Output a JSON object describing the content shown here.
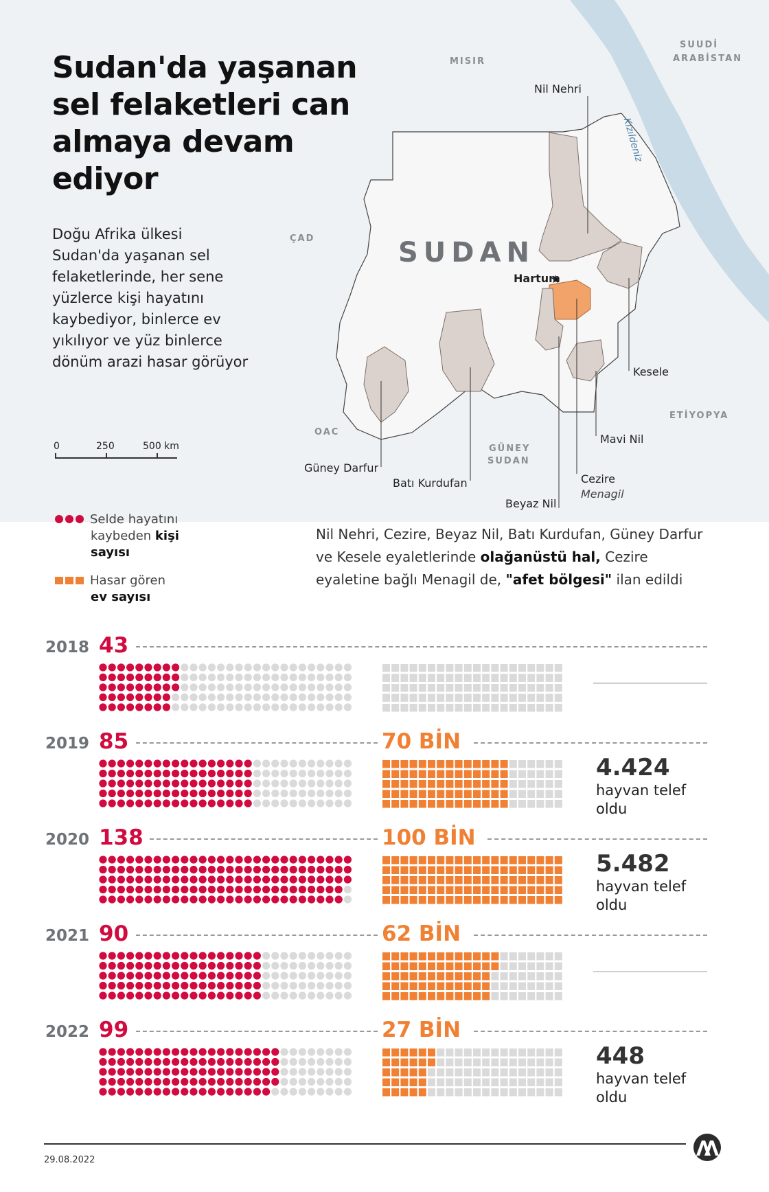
{
  "header": {
    "title": "Sudan'da yaşanan sel felaketleri can almaya devam ediyor",
    "intro": "Doğu Afrika ülkesi Sudan'da yaşanan sel felaketlerinde, her sene yüzlerce kişi hayatını kaybediyor, binlerce ev yıkılıyor ve yüz binlerce dönüm arazi hasar görüyor"
  },
  "scale_bar": {
    "labels": [
      "0",
      "250",
      "500 km"
    ]
  },
  "map": {
    "country_label": "SUDAN",
    "neighbors": {
      "misir": "MISIR",
      "suudi_line1": "SUUDİ",
      "suudi_line2": "ARABİSTAN",
      "cad": "ÇAD",
      "oac": "OAC",
      "etiyopya": "ETİYOPYA",
      "guney_line1": "GÜNEY",
      "guney_line2": "SUDAN"
    },
    "sea": "Kızıldeniz",
    "capital": "Hartum",
    "capital_marker": "★",
    "callouts": {
      "nil_nehri": "Nil Nehri",
      "kesele": "Kesele",
      "mavi_nil": "Mavi Nil",
      "cezire": "Cezire",
      "menagil": "Menagil",
      "beyaz_nil": "Beyaz Nil",
      "bati_kurdufan": "Batı Kurdufan",
      "guney_darfur": "Güney Darfur"
    },
    "colors": {
      "land": "#eef2f4",
      "sea": "#c8dbe6",
      "sudan": "#f7f7f7",
      "affected": "#dcd2cd",
      "menagil": "#f2a36a"
    }
  },
  "legend": {
    "deaths_line1": "Selde hayatını",
    "deaths_line2_pre": "kaybeden ",
    "deaths_line2_bold": "kişi",
    "deaths_line3": "sayısı",
    "houses_line1": "Hasar gören",
    "houses_line2": "ev sayısı"
  },
  "note": {
    "part1": "Nil Nehri, Cezire, Beyaz Nil, Batı Kurdufan, Güney Darfur ve Kesele eyaletlerinde ",
    "bold1": "olağanüstü hal,",
    "part2": " Cezire eyaletine bağlı Menagil de, ",
    "bold2": "\"afet bölgesi\"",
    "part3": " ilan edildi"
  },
  "colors": {
    "death": "#d10a3f",
    "house": "#f08033",
    "empty": "#dadada"
  },
  "chart_data": {
    "type": "table",
    "columns": [
      "year",
      "deaths",
      "damaged_houses",
      "animals_lost"
    ],
    "rows": [
      {
        "year": "2018",
        "deaths": "43",
        "deaths_value": 43,
        "houses": "",
        "houses_value": 0,
        "animals": "",
        "animals_text": ""
      },
      {
        "year": "2019",
        "deaths": "85",
        "deaths_value": 85,
        "houses": "70 BİN",
        "houses_value": 70,
        "animals": "4.424",
        "animals_text": "hayvan telef oldu"
      },
      {
        "year": "2020",
        "deaths": "138",
        "deaths_value": 138,
        "houses": "100 BİN",
        "houses_value": 100,
        "animals": "5.482",
        "animals_text": "hayvan telef oldu"
      },
      {
        "year": "2021",
        "deaths": "90",
        "deaths_value": 90,
        "houses": "62 BİN",
        "houses_value": 62,
        "animals": "",
        "animals_text": ""
      },
      {
        "year": "2022",
        "deaths": "99",
        "deaths_value": 99,
        "houses": "27 BİN",
        "houses_value": 27,
        "animals": "448",
        "animals_text": "hayvan telef oldu"
      }
    ]
  },
  "footer": {
    "date": "29.08.2022",
    "logo": "aa-logo"
  }
}
